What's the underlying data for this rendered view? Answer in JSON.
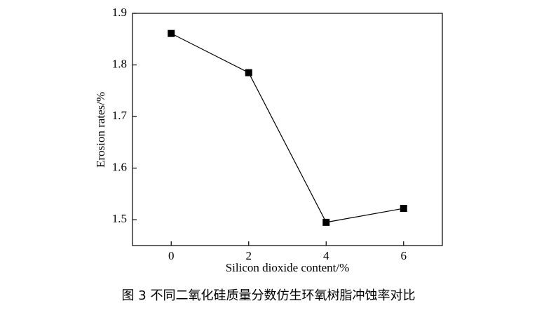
{
  "chart_data": {
    "type": "line",
    "x": [
      0,
      2,
      4,
      6
    ],
    "series": [
      {
        "color": "#000000",
        "values": [
          1.861,
          1.785,
          1.495,
          1.522
        ]
      }
    ],
    "xlim": [
      -1,
      7
    ],
    "xticks": [
      0,
      2,
      4,
      6
    ],
    "ylim": [
      1.45,
      1.9
    ],
    "yticks": [
      1.5,
      1.6,
      1.7,
      1.8,
      1.9
    ],
    "x_label": "Silicon dioxide content/%",
    "y_label": "Erosion rates/%",
    "caption": "图 3 不同二氧化硅质量分数仿生环氧树脂冲蚀率对比"
  }
}
